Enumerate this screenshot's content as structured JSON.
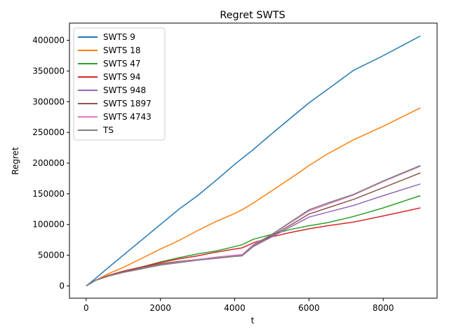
{
  "chart_data": {
    "type": "line",
    "title": "Regret SWTS",
    "xlabel": "t",
    "ylabel": "Regret",
    "xlim": [
      -450,
      9450
    ],
    "ylim": [
      -20000,
      428000
    ],
    "xticks": [
      0,
      2000,
      4000,
      6000,
      8000
    ],
    "yticks": [
      0,
      50000,
      100000,
      150000,
      200000,
      250000,
      300000,
      350000,
      400000
    ],
    "grid": false,
    "legend": "top-left",
    "series": [
      {
        "name": "SWTS 9",
        "color": "#1f77b4",
        "x": [
          0,
          250,
          600,
          1000,
          1500,
          2000,
          2500,
          3000,
          3500,
          4000,
          4500,
          5000,
          5500,
          6000,
          6500,
          7200,
          8000,
          9000
        ],
        "y": [
          0,
          12000,
          30000,
          50000,
          75000,
          100000,
          125000,
          147000,
          172000,
          198000,
          222000,
          248000,
          273000,
          298000,
          320000,
          351000,
          375000,
          407000
        ]
      },
      {
        "name": "SWTS 18",
        "color": "#ff7f0e",
        "x": [
          0,
          250,
          600,
          1000,
          1500,
          2000,
          2500,
          3000,
          3500,
          4000,
          4200,
          4500,
          5000,
          5500,
          6000,
          6500,
          7200,
          8000,
          9000
        ],
        "y": [
          0,
          9000,
          20000,
          30000,
          45000,
          60000,
          74000,
          90000,
          105000,
          118000,
          124000,
          135000,
          155000,
          175000,
          196000,
          215000,
          238000,
          260000,
          290000
        ]
      },
      {
        "name": "SWTS 47",
        "color": "#2ca02c",
        "x": [
          0,
          250,
          600,
          1000,
          1500,
          2000,
          2500,
          3000,
          3500,
          4000,
          4200,
          4500,
          5000,
          5500,
          6000,
          6500,
          7200,
          8000,
          9000
        ],
        "y": [
          0,
          9000,
          17000,
          23000,
          31000,
          39000,
          46000,
          52000,
          57000,
          64000,
          67000,
          76000,
          84000,
          92000,
          98000,
          103000,
          113000,
          127000,
          147000
        ]
      },
      {
        "name": "SWTS 94",
        "color": "#d62728",
        "x": [
          0,
          250,
          600,
          1000,
          1500,
          2000,
          2500,
          3000,
          3500,
          4000,
          4200,
          4500,
          5000,
          5500,
          6000,
          6500,
          7200,
          8000,
          9000
        ],
        "y": [
          0,
          9000,
          17000,
          24000,
          31000,
          38000,
          44000,
          49000,
          55000,
          60000,
          62000,
          70000,
          80000,
          87000,
          93000,
          98000,
          104000,
          114000,
          127000
        ]
      },
      {
        "name": "SWTS 948",
        "color": "#9467bd",
        "x": [
          0,
          250,
          600,
          1000,
          1500,
          2000,
          2500,
          3000,
          3500,
          4000,
          4200,
          4500,
          5000,
          5500,
          6000,
          6500,
          7200,
          8000,
          9000
        ],
        "y": [
          0,
          9000,
          16000,
          22000,
          28000,
          34000,
          38000,
          42000,
          45000,
          48000,
          49000,
          64000,
          80000,
          96000,
          112000,
          120000,
          131000,
          147000,
          166000
        ]
      },
      {
        "name": "SWTS 1897",
        "color": "#8c564b",
        "x": [
          0,
          250,
          600,
          1000,
          1500,
          2000,
          2500,
          3000,
          3500,
          4000,
          4200,
          4500,
          5000,
          5500,
          6000,
          6500,
          7200,
          8000,
          9000
        ],
        "y": [
          0,
          9000,
          16000,
          23000,
          30000,
          36000,
          40000,
          43000,
          46000,
          49000,
          50000,
          66000,
          82000,
          99000,
          117000,
          127000,
          141000,
          160000,
          184000
        ]
      },
      {
        "name": "SWTS 4743",
        "color": "#e377c2",
        "x": [
          0,
          250,
          600,
          1000,
          1500,
          2000,
          2500,
          3000,
          3500,
          4000,
          4200,
          4500,
          5000,
          5500,
          6000,
          6500,
          7200,
          8000,
          9000
        ],
        "y": [
          0,
          9000,
          16000,
          22000,
          28000,
          34000,
          39000,
          43000,
          47000,
          50000,
          51000,
          67000,
          84000,
          103000,
          122000,
          133000,
          148000,
          170000,
          195000
        ]
      },
      {
        "name": "TS",
        "color": "#7f7f7f",
        "x": [
          0,
          250,
          600,
          1000,
          1500,
          2000,
          2500,
          3000,
          3500,
          4000,
          4200,
          4500,
          5000,
          5500,
          6000,
          6500,
          7200,
          8000,
          9000
        ],
        "y": [
          0,
          9000,
          16000,
          22000,
          28000,
          34000,
          38000,
          42000,
          45000,
          48000,
          49000,
          66000,
          84000,
          104000,
          124000,
          135000,
          149000,
          171000,
          196000
        ]
      }
    ]
  }
}
